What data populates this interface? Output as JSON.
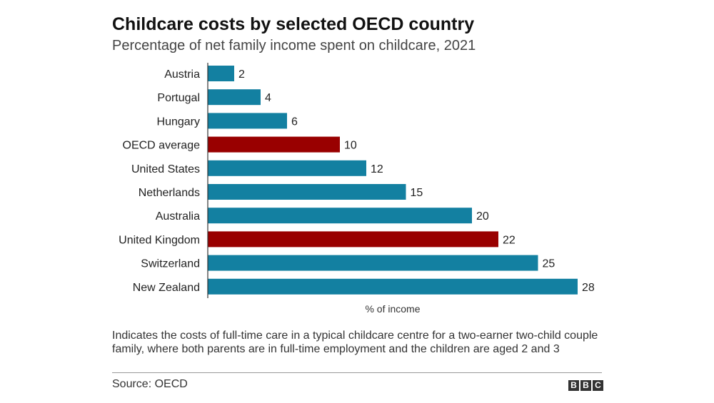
{
  "chart_data": {
    "type": "bar",
    "orientation": "horizontal",
    "title": "Childcare costs by selected OECD country",
    "subtitle": "Percentage of net family income spent on childcare, 2021",
    "categories": [
      "Austria",
      "Portugal",
      "Hungary",
      "OECD average",
      "United States",
      "Netherlands",
      "Australia",
      "United Kingdom",
      "Switzerland",
      "New Zealand"
    ],
    "values": [
      2,
      4,
      6,
      10,
      12,
      15,
      20,
      22,
      25,
      28
    ],
    "highlighted": [
      "OECD average",
      "United Kingdom"
    ],
    "xlabel": "% of income",
    "ylabel": "",
    "xlim": [
      0,
      28
    ],
    "colors": {
      "default": "#1380a1",
      "highlight": "#990000"
    },
    "grid": false,
    "legend": "none"
  },
  "note": "Indicates the costs of full-time care in a typical childcare centre for a two-earner two-child couple family, where both parents are in full-time employment and the children are aged 2 and 3",
  "source": "Source: OECD",
  "logo": {
    "letters": [
      "B",
      "B",
      "C"
    ]
  }
}
